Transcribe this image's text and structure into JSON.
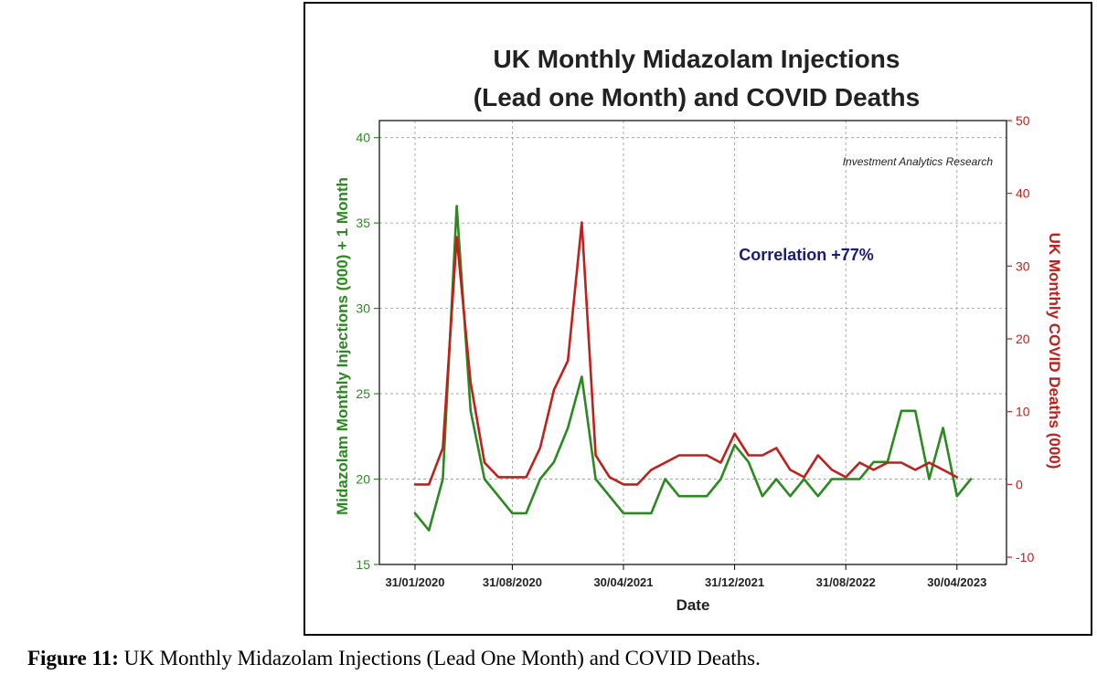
{
  "caption": {
    "label": "Figure 11:",
    "text": " UK Monthly Midazolam Injections (Lead One Month) and COVID Deaths."
  },
  "chart_data": {
    "type": "line",
    "title_lines": [
      "UK Monthly Midazolam Injections",
      "(Lead one Month) and COVID Deaths"
    ],
    "watermark": "Investment Analytics Research",
    "annotation": "Correlation +77%",
    "xlabel": "Date",
    "x_tick_labels": [
      "31/01/2020",
      "31/08/2020",
      "30/04/2021",
      "31/12/2021",
      "31/08/2022",
      "30/04/2023"
    ],
    "ylabel_left": "Midazolam Monthly Injections (000) + 1 Month",
    "ylabel_right": "UK Monthly COVID Deaths (000)",
    "ylim_left": [
      15,
      41
    ],
    "ylim_right": [
      -11,
      50
    ],
    "y_ticks_left": [
      15,
      20,
      25,
      30,
      35,
      40
    ],
    "y_ticks_right": [
      -10,
      0,
      10,
      20,
      30,
      40,
      50
    ],
    "grid": true,
    "colors": {
      "left": "#2a8a1f",
      "right": "#c0201c",
      "annotation": "#1a1a7a"
    },
    "series": [
      {
        "axis": "left",
        "values": [
          18,
          17,
          20,
          36,
          24,
          20,
          19,
          18,
          18,
          20,
          21,
          23,
          26,
          20,
          19,
          18,
          18,
          18,
          20,
          19,
          19,
          19,
          20,
          22,
          21,
          19,
          20,
          19,
          20,
          19,
          20,
          20,
          20,
          21,
          21,
          24,
          24,
          20,
          23,
          19,
          20
        ]
      },
      {
        "axis": "right",
        "values": [
          0,
          0,
          5,
          34,
          14,
          3,
          1,
          1,
          1,
          5,
          13,
          17,
          36,
          4,
          1,
          0,
          0,
          2,
          3,
          4,
          4,
          4,
          3,
          7,
          4,
          4,
          5,
          2,
          1,
          4,
          2,
          1,
          3,
          2,
          3,
          3,
          2,
          3,
          2,
          1
        ]
      }
    ]
  }
}
